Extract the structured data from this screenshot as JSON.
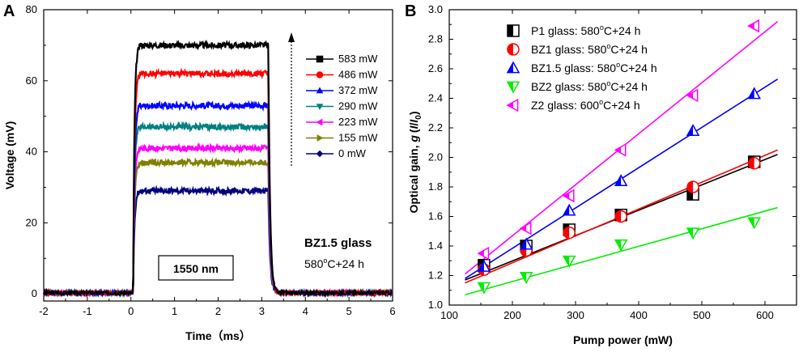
{
  "chart_data": [
    {
      "panel": "A",
      "type": "line",
      "xlabel": "Time（ms）",
      "ylabel": "Voltage (mV)",
      "xlim": [
        -2,
        6
      ],
      "ylim": [
        -2,
        80
      ],
      "xticks": [
        "-2",
        "-1",
        "0",
        "1",
        "2",
        "3",
        "4",
        "5",
        "6"
      ],
      "yticks": [
        "0",
        "20",
        "40",
        "60",
        "80"
      ],
      "pulse": {
        "start_ms": 0.05,
        "end_ms": 3.15,
        "baseline_mV": 0.3
      },
      "series": [
        {
          "name": "583 mW",
          "level_mV": 70,
          "color": "#000000",
          "marker": "square"
        },
        {
          "name": "486 mW",
          "level_mV": 62,
          "color": "#ff0000",
          "marker": "circle"
        },
        {
          "name": "372 mW",
          "level_mV": 53,
          "color": "#0000ff",
          "marker": "triangle-up"
        },
        {
          "name": "290 mW",
          "level_mV": 47,
          "color": "#008080",
          "marker": "triangle-down"
        },
        {
          "name": "223 mW",
          "level_mV": 41,
          "color": "#ff00ff",
          "marker": "triangle-left"
        },
        {
          "name": "155 mW",
          "level_mV": 37,
          "color": "#808000",
          "marker": "triangle-right"
        },
        {
          "name": "0 mW",
          "level_mV": 29,
          "color": "#000080",
          "marker": "diamond"
        }
      ],
      "annotations": {
        "sample": "BZ1.5 glass",
        "treatment": "580",
        "treatment_super": "o",
        "treatment_tail": "C+24 h",
        "wavelength": "1550 nm"
      }
    },
    {
      "panel": "B",
      "type": "scatter",
      "xlabel": "Pump power (mW)",
      "ylabel_prefix": "Optical gain, ",
      "ylabel_g": "g",
      "ylabel_paren": "(",
      "ylabel_I": "I",
      "ylabel_slash": "/",
      "ylabel_I0": "I",
      "ylabel_sub": "0",
      "ylabel_close": ")",
      "xlim": [
        100,
        650
      ],
      "ylim": [
        1.0,
        3.0
      ],
      "xticks": [
        "100",
        "200",
        "300",
        "400",
        "500",
        "600"
      ],
      "yticks": [
        "1.0",
        "1.2",
        "1.4",
        "1.6",
        "1.8",
        "2.0",
        "2.2",
        "2.4",
        "2.6",
        "2.8",
        "3.0"
      ],
      "series": [
        {
          "name": "P1 glass: ",
          "temp": "580",
          "tail": "C+24 h",
          "color": "#000000",
          "marker": "square",
          "x": [
            155,
            222,
            290,
            372,
            486,
            583
          ],
          "y": [
            1.27,
            1.4,
            1.51,
            1.61,
            1.75,
            1.97
          ],
          "fit": [
            [
              125,
              1.17
            ],
            [
              620,
              2.02
            ]
          ]
        },
        {
          "name": "BZ1 glass: ",
          "temp": "580",
          "tail": "C+24 h",
          "color": "#ff0000",
          "marker": "circle",
          "x": [
            155,
            222,
            290,
            372,
            486,
            583
          ],
          "y": [
            1.24,
            1.37,
            1.49,
            1.6,
            1.8,
            1.96
          ],
          "fit": [
            [
              125,
              1.15
            ],
            [
              620,
              2.05
            ]
          ]
        },
        {
          "name": "BZ1.5 glass: ",
          "temp": "580",
          "tail": "C+24 h",
          "color": "#0000ff",
          "marker": "triangle-up",
          "x": [
            155,
            222,
            290,
            372,
            486,
            583
          ],
          "y": [
            1.26,
            1.41,
            1.64,
            1.84,
            2.18,
            2.43
          ],
          "fit": [
            [
              125,
              1.18
            ],
            [
              620,
              2.53
            ]
          ]
        },
        {
          "name": "BZ2 glass: ",
          "temp": "580",
          "tail": "C+24 h",
          "color": "#00ee00",
          "marker": "triangle-down",
          "x": [
            155,
            222,
            290,
            372,
            486,
            583
          ],
          "y": [
            1.12,
            1.19,
            1.3,
            1.41,
            1.49,
            1.56
          ],
          "fit": [
            [
              125,
              1.07
            ],
            [
              620,
              1.66
            ]
          ]
        },
        {
          "name": "Z2 glass: ",
          "temp": "600",
          "tail": "C+24 h",
          "color": "#ff00ff",
          "marker": "triangle-left",
          "x": [
            155,
            222,
            290,
            372,
            486,
            583
          ],
          "y": [
            1.35,
            1.52,
            1.74,
            2.05,
            2.42,
            2.89
          ],
          "fit": [
            [
              125,
              1.21
            ],
            [
              620,
              2.92
            ]
          ]
        }
      ],
      "degree_symbol": "o"
    }
  ]
}
